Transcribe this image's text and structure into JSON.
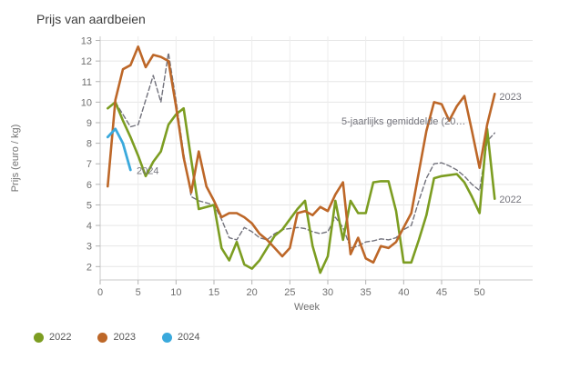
{
  "title": "Prijs van aardbeien",
  "axes": {
    "x_label": "Week",
    "y_label": "Prijs (euro / kg)",
    "x_ticks": [
      0,
      5,
      10,
      15,
      20,
      25,
      30,
      35,
      40,
      45,
      50
    ],
    "y_ticks": [
      2,
      3,
      4,
      5,
      6,
      7,
      8,
      9,
      10,
      11,
      12,
      13
    ]
  },
  "colors": {
    "green_2022": "#7c9d21",
    "orange_2023": "#bd6728",
    "blue_2024": "#3aa9dc",
    "avg_gray": "#72727c",
    "grid_h": "#e6e6e6",
    "grid_v": "#ededed",
    "axis_line": "#c9c9c9",
    "tick_mark": "#b3b3b3",
    "tick_text": "#707070",
    "title_text": "#3e3e3e",
    "annotation_text": "#75757d",
    "legend_text": "#565656"
  },
  "legend": [
    {
      "label": "2022",
      "color": "#7c9d21"
    },
    {
      "label": "2023",
      "color": "#bd6728"
    },
    {
      "label": "2024",
      "color": "#3aa9dc"
    }
  ],
  "annotations": [
    {
      "name": "series-label-2024",
      "text": "2024",
      "week": 4.8,
      "value": 6.5
    },
    {
      "name": "series-label-avg",
      "text": "5-jaarlijks gemiddelde (20…",
      "week": 31.8,
      "value": 8.9
    },
    {
      "name": "series-label-2023",
      "text": "2023",
      "week": 52.6,
      "value": 10.1
    },
    {
      "name": "series-label-2022",
      "text": "2022",
      "week": 52.6,
      "value": 5.1
    }
  ],
  "chart_data": {
    "type": "line",
    "title": "Prijs van aardbeien",
    "xlabel": "Week",
    "ylabel": "Prijs (euro / kg)",
    "xlim": [
      0,
      57
    ],
    "ylim": [
      1.35,
      13.2
    ],
    "grid": true,
    "legend_position": "bottom-left",
    "series": [
      {
        "name": "5-jaarlijks gemiddelde (20…",
        "style": "dashed",
        "color": "#72727c",
        "width": 1.4,
        "x": [
          2,
          3,
          4,
          5,
          6,
          7,
          8,
          9,
          10,
          11,
          12,
          13,
          14,
          15,
          16,
          17,
          18,
          19,
          20,
          21,
          22,
          23,
          24,
          25,
          26,
          27,
          28,
          29,
          30,
          31,
          32,
          33,
          34,
          35,
          36,
          37,
          38,
          39,
          40,
          41,
          42,
          43,
          44,
          45,
          46,
          47,
          48,
          49,
          50,
          51,
          52
        ],
        "y": [
          10.0,
          9.4,
          8.8,
          8.9,
          10.1,
          11.3,
          10.0,
          12.4,
          10.1,
          7.5,
          5.4,
          5.2,
          5.1,
          5.0,
          4.3,
          3.4,
          3.3,
          3.9,
          3.7,
          3.4,
          3.3,
          3.6,
          3.8,
          3.85,
          3.9,
          3.85,
          3.7,
          3.6,
          3.7,
          4.4,
          3.9,
          2.9,
          3.0,
          3.2,
          3.25,
          3.35,
          3.3,
          3.4,
          3.8,
          4.0,
          5.2,
          6.3,
          7.0,
          7.05,
          6.9,
          6.7,
          6.4,
          6.0,
          5.7,
          8.1,
          8.5
        ]
      },
      {
        "name": "2022",
        "style": "solid",
        "color": "#7c9d21",
        "width": 2.6,
        "x": [
          1,
          2,
          3,
          4,
          5,
          6,
          7,
          8,
          9,
          10,
          11,
          12,
          13,
          14,
          15,
          16,
          17,
          18,
          19,
          20,
          21,
          22,
          23,
          24,
          25,
          26,
          27,
          28,
          29,
          30,
          31,
          32,
          33,
          34,
          35,
          36,
          37,
          38,
          39,
          40,
          41,
          42,
          43,
          44,
          45,
          46,
          47,
          48,
          49,
          50,
          51,
          52
        ],
        "y": [
          9.7,
          10.0,
          9.1,
          8.3,
          7.4,
          6.4,
          7.1,
          7.6,
          8.9,
          9.4,
          9.7,
          7.2,
          4.8,
          4.9,
          5.0,
          2.9,
          2.3,
          3.2,
          2.1,
          1.9,
          2.3,
          2.9,
          3.5,
          3.8,
          4.3,
          4.8,
          5.2,
          3.0,
          1.7,
          2.5,
          5.2,
          3.3,
          5.2,
          4.6,
          4.6,
          6.1,
          6.15,
          6.15,
          4.7,
          2.2,
          2.2,
          3.3,
          4.5,
          6.3,
          6.4,
          6.45,
          6.5,
          6.1,
          5.4,
          4.6,
          8.7,
          5.3
        ]
      },
      {
        "name": "2023",
        "style": "solid",
        "color": "#bd6728",
        "width": 2.6,
        "x": [
          1,
          2,
          3,
          4,
          5,
          6,
          7,
          8,
          9,
          10,
          11,
          12,
          13,
          14,
          15,
          16,
          17,
          18,
          19,
          20,
          21,
          22,
          23,
          24,
          25,
          26,
          27,
          28,
          29,
          30,
          31,
          32,
          33,
          34,
          35,
          36,
          37,
          38,
          39,
          40,
          41,
          42,
          43,
          44,
          45,
          46,
          47,
          48,
          49,
          50,
          51,
          52
        ],
        "y": [
          5.9,
          10.1,
          11.6,
          11.8,
          12.7,
          11.7,
          12.3,
          12.2,
          12.0,
          9.8,
          7.3,
          5.6,
          7.6,
          5.9,
          5.2,
          4.4,
          4.6,
          4.6,
          4.4,
          4.1,
          3.6,
          3.3,
          2.9,
          2.5,
          2.9,
          4.6,
          4.7,
          4.5,
          4.9,
          4.7,
          5.5,
          6.1,
          2.6,
          3.4,
          2.4,
          2.2,
          3.0,
          2.9,
          3.2,
          3.9,
          4.6,
          6.6,
          8.6,
          10.0,
          9.9,
          9.1,
          9.8,
          10.3,
          8.6,
          6.8,
          8.9,
          10.4
        ]
      },
      {
        "name": "2024",
        "style": "solid",
        "color": "#3aa9dc",
        "width": 2.8,
        "x": [
          1,
          2,
          3,
          4
        ],
        "y": [
          8.3,
          8.7,
          8.0,
          6.7
        ]
      }
    ]
  }
}
